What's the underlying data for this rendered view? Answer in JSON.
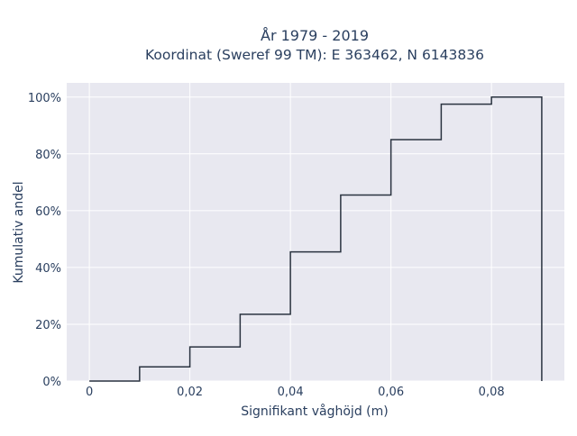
{
  "chart_data": {
    "type": "line",
    "subtype": "cumulative-step",
    "title_line1": "År 1979 - 2019",
    "title_line2": "Koordinat (Sweref 99 TM): E 363462, N 6143836",
    "xlabel": "Signifikant våghöjd (m)",
    "ylabel": "Kumulativ andel",
    "xlim": [
      -0.0045,
      0.0945
    ],
    "ylim": [
      0,
      1.05
    ],
    "x_ticks": [
      0,
      0.02,
      0.04,
      0.06,
      0.08
    ],
    "x_tick_labels": [
      "0",
      "0,02",
      "0,04",
      "0,06",
      "0,08"
    ],
    "y_ticks": [
      0,
      0.2,
      0.4,
      0.6,
      0.8,
      1.0
    ],
    "y_tick_labels": [
      "0%",
      "20%",
      "40%",
      "60%",
      "80%",
      "100%"
    ],
    "grid": true,
    "line_color": "#2a3340",
    "plot_bg": "#e8e8f0",
    "series": [
      {
        "bins": [
          0,
          0.01,
          0.02,
          0.03,
          0.04,
          0.05,
          0.06,
          0.07,
          0.08,
          0.09
        ],
        "values": [
          0.0,
          0.05,
          0.12,
          0.235,
          0.455,
          0.655,
          0.85,
          0.975,
          1.0
        ]
      }
    ]
  }
}
